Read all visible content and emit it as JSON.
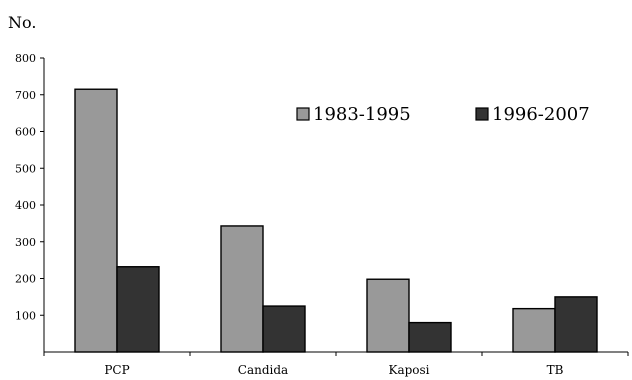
{
  "chart_data": {
    "type": "bar",
    "title": "",
    "ylabel": "No.",
    "xlabel": "",
    "categories": [
      "PCP",
      "Candida",
      "Kaposi",
      "TB"
    ],
    "series": [
      {
        "name": "1983-1995",
        "values": [
          715,
          343,
          198,
          118
        ],
        "color": "#999999"
      },
      {
        "name": "1996-2007",
        "values": [
          232,
          125,
          80,
          150
        ],
        "color": "#333333"
      }
    ],
    "ylim": [
      0,
      800
    ],
    "yticks": [
      "100",
      "200",
      "300",
      "400",
      "500",
      "600",
      "700",
      "800"
    ],
    "grid": false,
    "legend_position": "top-right"
  }
}
